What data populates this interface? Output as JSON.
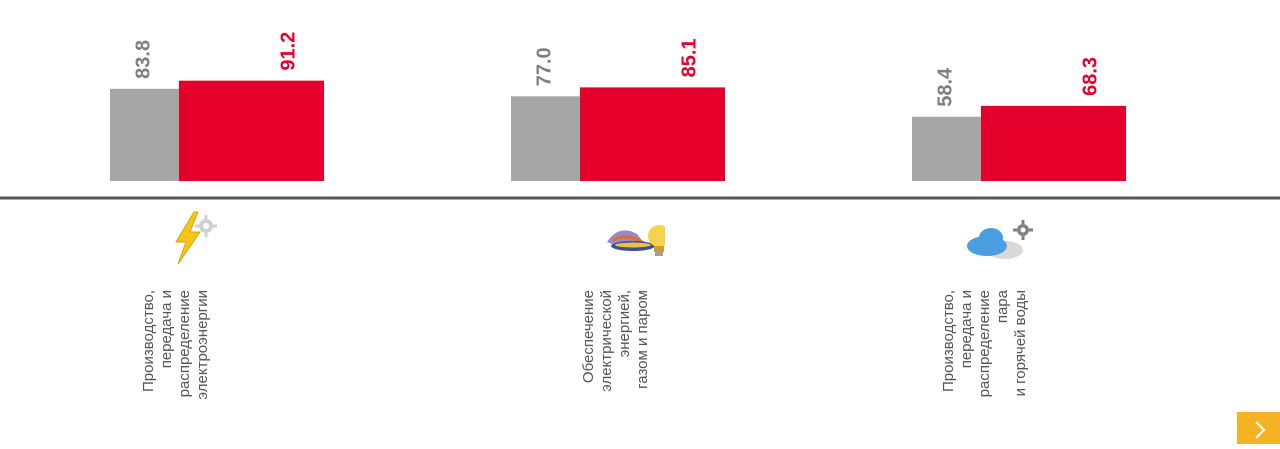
{
  "chart_data": {
    "type": "bar",
    "categories": [
      "Производство,\nпередача и\nраспределение\nэлектроэнергии",
      "Обеспечение\nэлектрической\nэнергией,\nгазом и паром",
      "Производство,\nпередача и\nраспределение\nпара\nи горячей воды"
    ],
    "series": [
      {
        "values": [
          83.8,
          77.0,
          58.4
        ]
      },
      {
        "values": [
          91.2,
          85.1,
          68.3
        ]
      }
    ],
    "value_labels": [
      [
        "83.8",
        "77.0",
        "58.4"
      ],
      [
        "91.2",
        "85.1",
        "68.3"
      ]
    ],
    "colors": [
      "#a6a6a6",
      "#e4002b"
    ],
    "value_label_colors": [
      "#7f7f7f",
      "#e4002b"
    ],
    "ylim": [
      0,
      100
    ],
    "legend": "none",
    "grid": false
  },
  "icons": [
    "lightning-gear-icon",
    "dish-bulb-icon",
    "cloud-gear-icon"
  ],
  "nav": {
    "next_icon": "chevron-right-icon"
  },
  "axis_color": "#595959"
}
